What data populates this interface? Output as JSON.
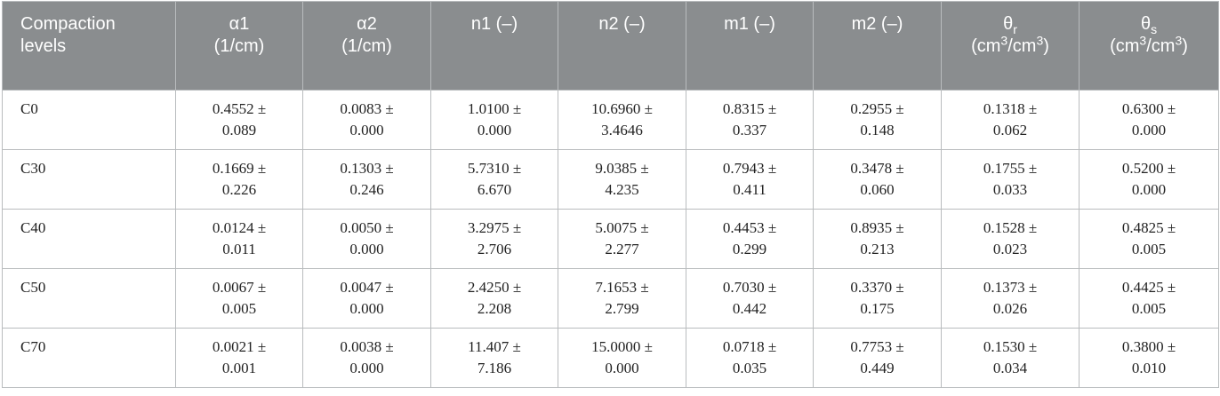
{
  "table": {
    "headers": [
      {
        "line1": "Compaction",
        "line2": "levels"
      },
      {
        "line1": "α1",
        "line2": "(1/cm)"
      },
      {
        "line1": "α2",
        "line2": "(1/cm)"
      },
      {
        "line1": "n1 (–)",
        "line2": ""
      },
      {
        "line1": "n2 (–)",
        "line2": ""
      },
      {
        "line1": "m1 (–)",
        "line2": ""
      },
      {
        "line1": "m2 (–)",
        "line2": ""
      },
      {
        "symbol": "θ",
        "sub": "r",
        "unit_a": "(cm",
        "sup_a": "3",
        "unit_b": "/cm",
        "sup_b": "3",
        "unit_c": ")"
      },
      {
        "symbol": "θ",
        "sub": "s",
        "unit_a": "(cm",
        "sup_a": "3",
        "unit_b": "/cm",
        "sup_b": "3",
        "unit_c": ")"
      }
    ],
    "rows": [
      {
        "label": "C0",
        "cells": [
          [
            "0.4552 ±",
            "0.089"
          ],
          [
            "0.0083 ±",
            "0.000"
          ],
          [
            "1.0100 ±",
            "0.000"
          ],
          [
            "10.6960 ±",
            "3.4646"
          ],
          [
            "0.8315 ±",
            "0.337"
          ],
          [
            "0.2955 ±",
            "0.148"
          ],
          [
            "0.1318 ±",
            "0.062"
          ],
          [
            "0.6300 ±",
            "0.000"
          ]
        ]
      },
      {
        "label": "C30",
        "cells": [
          [
            "0.1669 ±",
            "0.226"
          ],
          [
            "0.1303 ±",
            "0.246"
          ],
          [
            "5.7310 ±",
            "6.670"
          ],
          [
            "9.0385 ±",
            "4.235"
          ],
          [
            "0.7943 ±",
            "0.411"
          ],
          [
            "0.3478 ±",
            "0.060"
          ],
          [
            "0.1755 ±",
            "0.033"
          ],
          [
            "0.5200 ±",
            "0.000"
          ]
        ]
      },
      {
        "label": "C40",
        "cells": [
          [
            "0.0124 ±",
            "0.011"
          ],
          [
            "0.0050 ±",
            "0.000"
          ],
          [
            "3.2975 ±",
            "2.706"
          ],
          [
            "5.0075 ±",
            "2.277"
          ],
          [
            "0.4453 ±",
            "0.299"
          ],
          [
            "0.8935 ±",
            "0.213"
          ],
          [
            "0.1528 ±",
            "0.023"
          ],
          [
            "0.4825 ±",
            "0.005"
          ]
        ]
      },
      {
        "label": "C50",
        "cells": [
          [
            "0.0067 ±",
            "0.005"
          ],
          [
            "0.0047 ±",
            "0.000"
          ],
          [
            "2.4250 ±",
            "2.208"
          ],
          [
            "7.1653 ±",
            "2.799"
          ],
          [
            "0.7030 ±",
            "0.442"
          ],
          [
            "0.3370 ±",
            "0.175"
          ],
          [
            "0.1373 ±",
            "0.026"
          ],
          [
            "0.4425 ±",
            "0.005"
          ]
        ]
      },
      {
        "label": "C70",
        "cells": [
          [
            "0.0021 ±",
            "0.001"
          ],
          [
            "0.0038 ±",
            "0.000"
          ],
          [
            "11.407 ±",
            "7.186"
          ],
          [
            "15.0000 ±",
            "0.000"
          ],
          [
            "0.0718 ±",
            "0.035"
          ],
          [
            "0.7753 ±",
            "0.449"
          ],
          [
            "0.1530 ±",
            "0.034"
          ],
          [
            "0.3800 ±",
            "0.010"
          ]
        ]
      }
    ]
  }
}
